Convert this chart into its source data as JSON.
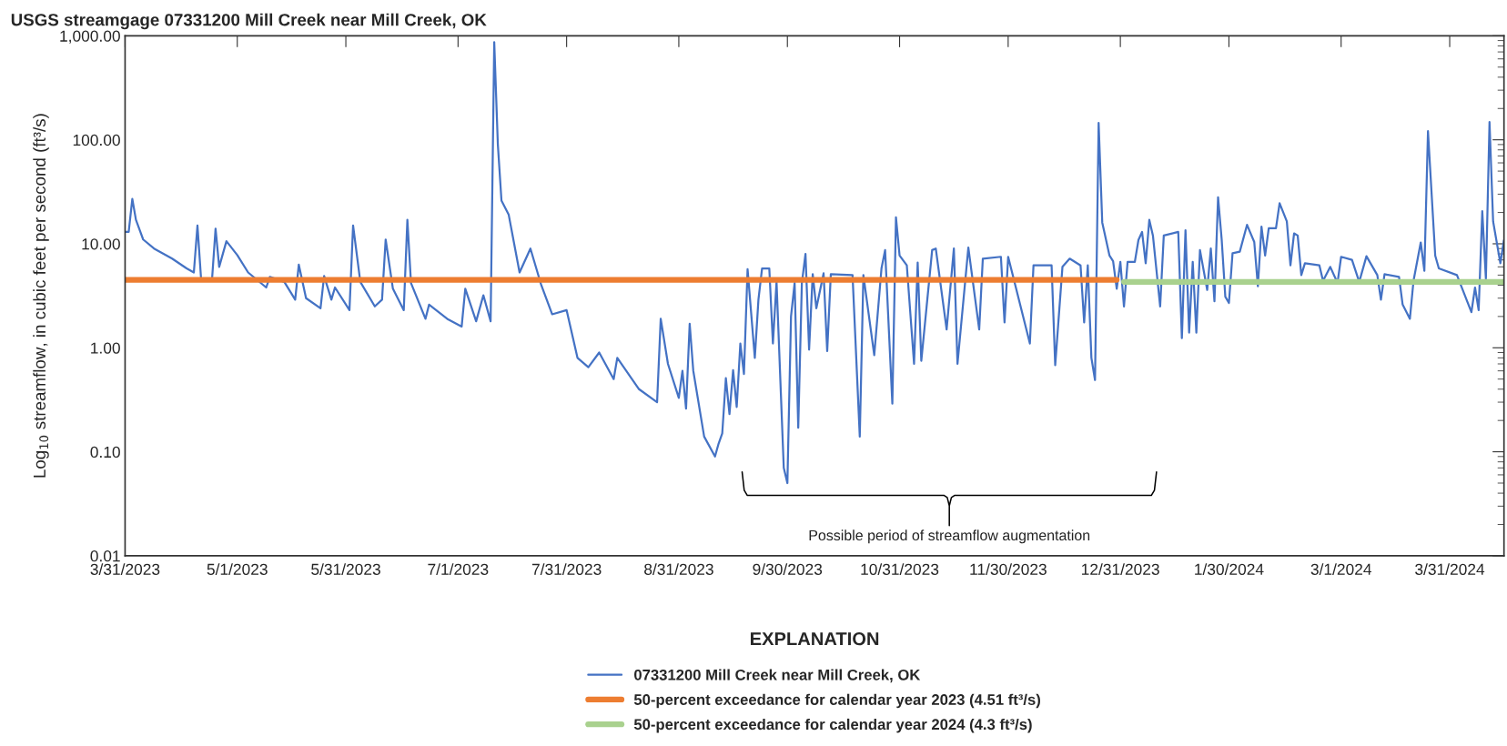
{
  "chart_data": {
    "type": "line",
    "title": "USGS streamgage 07331200 Mill Creek near Mill Creek, OK",
    "ylabel": "Log$_{10}$ streamflow, in cubic feet per second (ft³/s)",
    "legend_title": "EXPLANATION",
    "legend": "bottom",
    "log": "y",
    "grid": false,
    "line_style": "solid",
    "xlim": [
      "2023-03-31",
      "2024-04-15"
    ],
    "xticks": [
      {
        "value": "2023-03-31",
        "label": "3/31/2023"
      },
      {
        "value": "2023-05-01",
        "label": "5/1/2023"
      },
      {
        "value": "2023-05-31",
        "label": "5/31/2023"
      },
      {
        "value": "2023-07-01",
        "label": "7/1/2023"
      },
      {
        "value": "2023-07-31",
        "label": "7/31/2023"
      },
      {
        "value": "2023-08-31",
        "label": "8/31/2023"
      },
      {
        "value": "2023-09-30",
        "label": "9/30/2023"
      },
      {
        "value": "2023-10-31",
        "label": "10/31/2023"
      },
      {
        "value": "2023-11-30",
        "label": "11/30/2023"
      },
      {
        "value": "2023-12-31",
        "label": "12/31/2023"
      },
      {
        "value": "2024-01-30",
        "label": "1/30/2024"
      },
      {
        "value": "2024-03-01",
        "label": "3/1/2024"
      },
      {
        "value": "2024-03-31",
        "label": "3/31/2024"
      }
    ],
    "ylim": [
      0.01,
      1000
    ],
    "yticks": [
      {
        "value": 0.01,
        "label": "0.01"
      },
      {
        "value": 0.1,
        "label": "0.10"
      },
      {
        "value": 1,
        "label": "1.00"
      },
      {
        "value": 10,
        "label": "10.00"
      },
      {
        "value": 100,
        "label": "100.00"
      },
      {
        "value": 1000,
        "label": "1,000.00"
      }
    ],
    "annotations": [
      "Possible period of streamflow augmentation"
    ],
    "series": [
      {
        "name": "07331200 Mill Creek near Mill Creek, OK",
        "color": "#4472c4",
        "x": [
          "2023-03-31",
          "2023-04-01",
          "2023-04-02",
          "2023-04-03",
          "2023-04-05",
          "2023-04-08",
          "2023-04-13",
          "2023-04-17",
          "2023-04-19",
          "2023-04-20",
          "2023-04-21",
          "2023-04-24",
          "2023-04-25",
          "2023-04-26",
          "2023-04-28",
          "2023-05-01",
          "2023-05-04",
          "2023-05-09",
          "2023-05-10",
          "2023-05-14",
          "2023-05-17",
          "2023-05-18",
          "2023-05-20",
          "2023-05-24",
          "2023-05-25",
          "2023-05-27",
          "2023-05-28",
          "2023-06-01",
          "2023-06-02",
          "2023-06-04",
          "2023-06-08",
          "2023-06-10",
          "2023-06-11",
          "2023-06-13",
          "2023-06-16",
          "2023-06-17",
          "2023-06-18",
          "2023-06-22",
          "2023-06-23",
          "2023-06-28",
          "2023-07-02",
          "2023-07-03",
          "2023-07-06",
          "2023-07-08",
          "2023-07-10",
          "2023-07-11",
          "2023-07-12",
          "2023-07-13",
          "2023-07-15",
          "2023-07-18",
          "2023-07-21",
          "2023-07-24",
          "2023-07-27",
          "2023-07-31",
          "2023-08-03",
          "2023-08-06",
          "2023-08-09",
          "2023-08-13",
          "2023-08-14",
          "2023-08-20",
          "2023-08-25",
          "2023-08-26",
          "2023-08-28",
          "2023-08-31",
          "2023-09-01",
          "2023-09-02",
          "2023-09-03",
          "2023-09-04",
          "2023-09-07",
          "2023-09-10",
          "2023-09-11",
          "2023-09-12",
          "2023-09-13",
          "2023-09-14",
          "2023-09-15",
          "2023-09-16",
          "2023-09-17",
          "2023-09-18",
          "2023-09-19",
          "2023-09-21",
          "2023-09-22",
          "2023-09-23",
          "2023-09-25",
          "2023-09-26",
          "2023-09-27",
          "2023-09-29",
          "2023-09-30",
          "2023-10-01",
          "2023-10-02",
          "2023-10-03",
          "2023-10-04",
          "2023-10-05",
          "2023-10-06",
          "2023-10-07",
          "2023-10-08",
          "2023-10-10",
          "2023-10-11",
          "2023-10-12",
          "2023-10-18",
          "2023-10-20",
          "2023-10-21",
          "2023-10-24",
          "2023-10-26",
          "2023-10-27",
          "2023-10-29",
          "2023-10-30",
          "2023-10-31",
          "2023-11-02",
          "2023-11-04",
          "2023-11-05",
          "2023-11-06",
          "2023-11-09",
          "2023-11-10",
          "2023-11-13",
          "2023-11-15",
          "2023-11-16",
          "2023-11-19",
          "2023-11-22",
          "2023-11-23",
          "2023-11-28",
          "2023-11-29",
          "2023-11-30",
          "2023-12-06",
          "2023-12-07",
          "2023-12-12",
          "2023-12-13",
          "2023-12-15",
          "2023-12-17",
          "2023-12-20",
          "2023-12-21",
          "2023-12-22",
          "2023-12-23",
          "2023-12-24",
          "2023-12-25",
          "2023-12-26",
          "2023-12-28",
          "2023-12-29",
          "2023-12-30",
          "2023-12-31",
          "2024-01-01",
          "2024-01-02",
          "2024-01-04",
          "2024-01-05",
          "2024-01-06",
          "2024-01-07",
          "2024-01-08",
          "2024-01-09",
          "2024-01-11",
          "2024-01-12",
          "2024-01-16",
          "2024-01-17",
          "2024-01-18",
          "2024-01-19",
          "2024-01-20",
          "2024-01-21",
          "2024-01-22",
          "2024-01-24",
          "2024-01-25",
          "2024-01-26",
          "2024-01-27",
          "2024-01-28",
          "2024-01-29",
          "2024-01-30",
          "2024-01-31",
          "2024-02-02",
          "2024-02-04",
          "2024-02-06",
          "2024-02-07",
          "2024-02-08",
          "2024-02-09",
          "2024-02-10",
          "2024-02-12",
          "2024-02-13",
          "2024-02-15",
          "2024-02-16",
          "2024-02-17",
          "2024-02-18",
          "2024-02-19",
          "2024-02-20",
          "2024-02-24",
          "2024-02-25",
          "2024-02-27",
          "2024-02-29",
          "2024-03-01",
          "2024-03-04",
          "2024-03-06",
          "2024-03-08",
          "2024-03-11",
          "2024-03-12",
          "2024-03-13",
          "2024-03-17",
          "2024-03-18",
          "2024-03-20",
          "2024-03-21",
          "2024-03-23",
          "2024-03-24",
          "2024-03-25",
          "2024-03-27",
          "2024-03-28",
          "2024-04-02",
          "2024-04-06",
          "2024-04-07",
          "2024-04-08",
          "2024-04-09",
          "2024-04-10",
          "2024-04-11",
          "2024-04-12",
          "2024-04-14",
          "2024-04-15"
        ],
        "values": [
          13,
          13,
          27,
          17,
          11,
          9,
          7.2,
          5.8,
          5.3,
          15,
          4.6,
          4.4,
          14,
          6,
          10.6,
          7.8,
          5.3,
          3.8,
          4.8,
          4.3,
          2.9,
          6.3,
          3,
          2.4,
          4.9,
          2.9,
          3.8,
          2.3,
          15,
          4.3,
          2.5,
          2.9,
          11,
          3.7,
          2.3,
          17,
          4.2,
          1.9,
          2.6,
          1.9,
          1.6,
          3.7,
          1.8,
          3.2,
          1.8,
          870,
          90,
          26,
          19,
          5.3,
          9,
          4,
          2.1,
          2.3,
          0.8,
          0.65,
          0.9,
          0.5,
          0.8,
          0.4,
          0.3,
          1.9,
          0.7,
          0.33,
          0.6,
          0.26,
          1.7,
          0.6,
          0.14,
          0.09,
          0.12,
          0.15,
          0.51,
          0.23,
          0.61,
          0.27,
          1.1,
          0.56,
          5.7,
          0.8,
          2.9,
          5.8,
          5.8,
          1.1,
          4.3,
          0.07,
          0.05,
          2,
          4.2,
          0.17,
          4.2,
          8,
          0.96,
          5.1,
          2.4,
          5.2,
          0.93,
          5.1,
          5,
          0.14,
          5,
          0.85,
          5.8,
          8.7,
          0.29,
          18,
          7.7,
          6.2,
          0.7,
          6.6,
          0.75,
          8.7,
          9,
          1.5,
          9,
          0.7,
          9.2,
          1.5,
          7.2,
          7.5,
          1.75,
          7.5,
          1.1,
          6.2,
          6.2,
          0.68,
          6,
          7.2,
          6.2,
          1.75,
          6.2,
          0.8,
          0.49,
          145,
          16,
          7.7,
          6.8,
          3.7,
          6.7,
          2.5,
          6.7,
          6.7,
          10.9,
          13,
          6.5,
          17,
          12,
          2.5,
          12,
          13,
          1.24,
          13.5,
          1.4,
          6.7,
          1.4,
          8.7,
          3.6,
          9,
          2.8,
          28,
          11,
          3.1,
          2.7,
          8.1,
          8.4,
          15.2,
          10.4,
          3.9,
          14.6,
          7.7,
          14.1,
          14.1,
          24.6,
          16.4,
          6.2,
          12.6,
          12,
          5,
          6.5,
          6.2,
          4.4,
          6,
          4.2,
          7.5,
          7,
          4.3,
          7.6,
          5,
          2.9,
          5.1,
          4.8,
          2.6,
          1.9,
          4.4,
          10.3,
          5.5,
          121,
          7.7,
          5.8,
          5,
          2.2,
          3.8,
          2.3,
          20.6,
          4.6,
          148,
          16.4,
          6.5,
          10.9
        ]
      },
      {
        "name": "50-percent exceedance for calendar year 2023 (4.51 ft³/s)",
        "color": "#ed7d31",
        "x": [
          "2023-03-31",
          "2023-12-30"
        ],
        "values": [
          4.51,
          4.51
        ]
      },
      {
        "name": "50-percent exceedance for calendar year 2024 (4.3 ft³/s)",
        "color": "#a9d18e",
        "x": [
          "2024-01-01",
          "2024-04-15"
        ],
        "values": [
          4.3,
          4.3
        ]
      }
    ]
  }
}
